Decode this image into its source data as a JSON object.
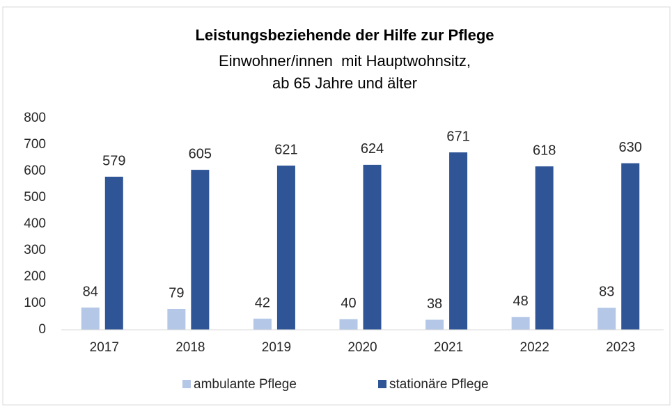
{
  "chart_data": {
    "type": "bar",
    "title": "Leistungsbeziehende der Hilfe zur Pflege",
    "subtitle": [
      "Einwohner/innen  mit Hauptwohnsitz,",
      "ab 65 Jahre und älter"
    ],
    "categories": [
      "2017",
      "2018",
      "2019",
      "2020",
      "2021",
      "2022",
      "2023"
    ],
    "series": [
      {
        "name": "ambulante Pflege",
        "color": "#b4c7e7",
        "values": [
          84,
          79,
          42,
          40,
          38,
          48,
          83
        ]
      },
      {
        "name": "stationäre Pflege",
        "color": "#2f5597",
        "values": [
          579,
          605,
          621,
          624,
          671,
          618,
          630
        ]
      }
    ],
    "ylim": [
      0,
      800
    ],
    "yticks": [
      0,
      100,
      200,
      300,
      400,
      500,
      600,
      700,
      800
    ],
    "grid": false,
    "legend": "bottom"
  }
}
